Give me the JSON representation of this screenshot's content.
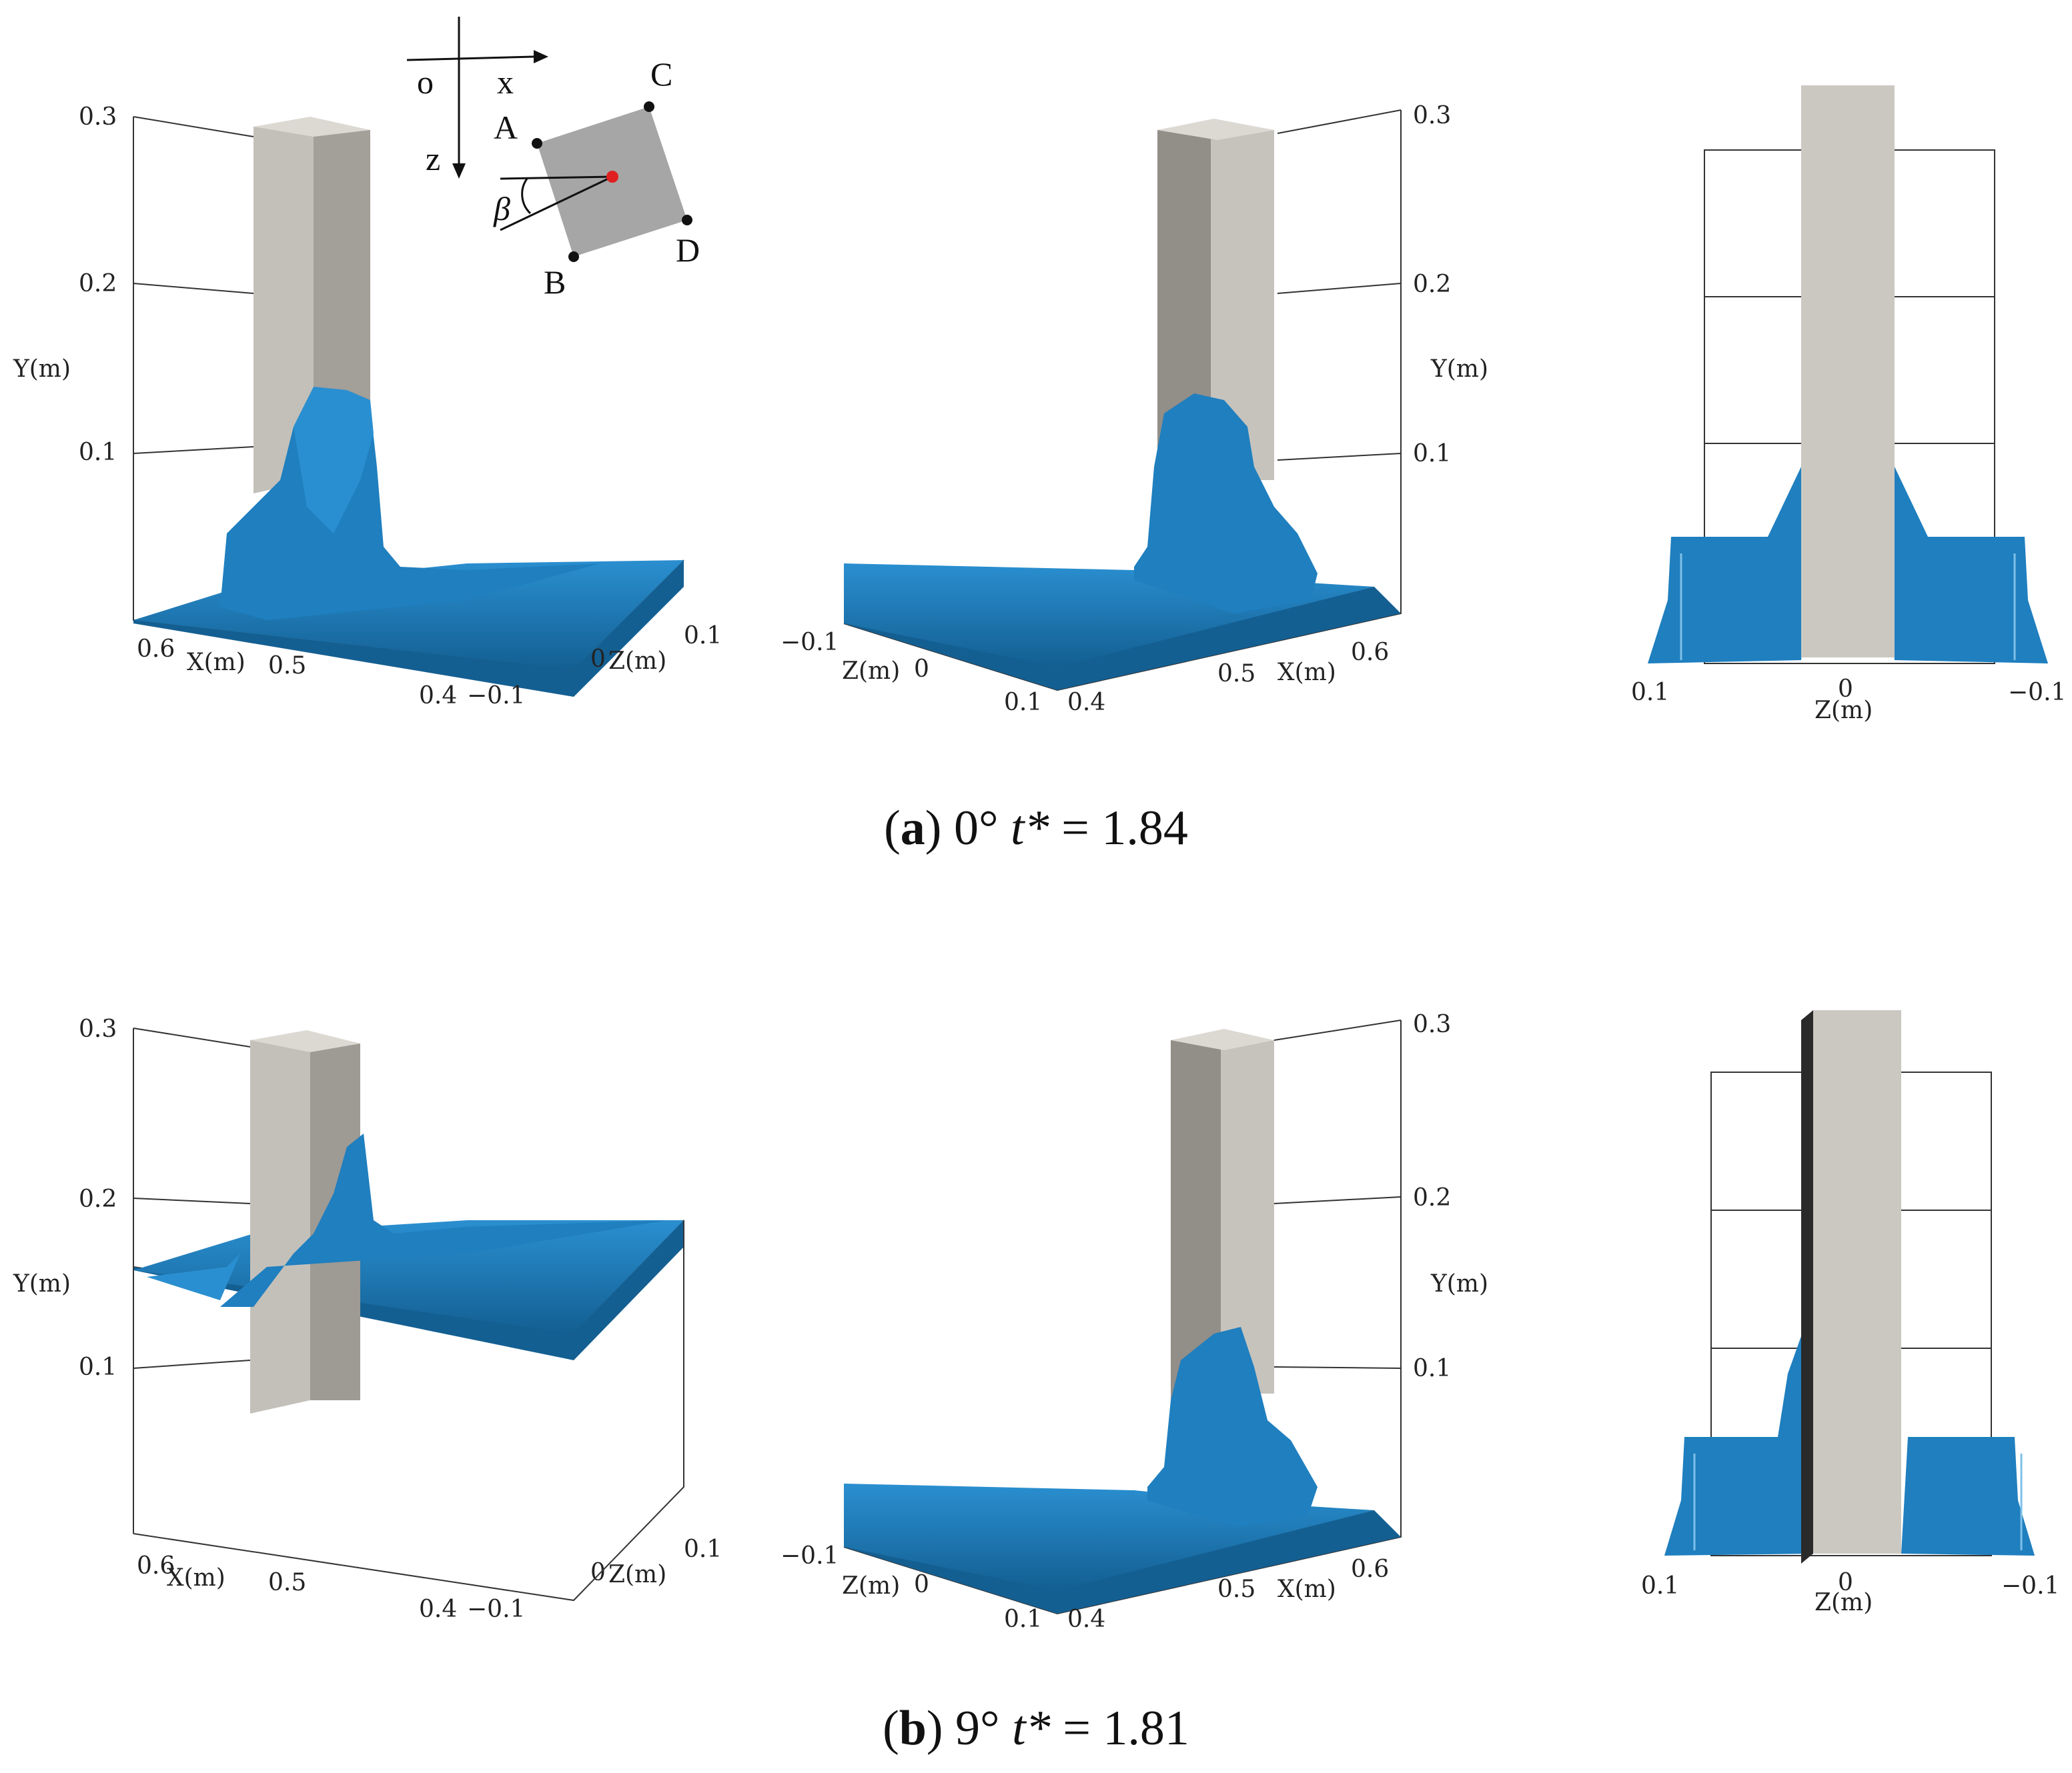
{
  "panels": [
    {
      "id": "a",
      "label": "a",
      "caption_angle": "0°",
      "caption_t": "t*",
      "caption_eq": "= 1.84",
      "view1": {
        "y_ticks": [
          "0.3",
          "0.2",
          "0.1"
        ],
        "x_ticks": [
          "0.6",
          "0.5",
          "0.4"
        ],
        "z_ticks": [
          "0.1",
          "0",
          "−0.1"
        ],
        "x_label": "X(m)",
        "y_label": "Y(m)",
        "z_label": "Z(m)"
      },
      "view2": {
        "y_ticks": [
          "0.3",
          "0.2",
          "0.1"
        ],
        "x_ticks": [
          "0.6",
          "0.5",
          "0.4"
        ],
        "z_ticks": [
          "−0.1",
          "0",
          "0.1"
        ],
        "x_label": "X(m)",
        "y_label": "Y(m)",
        "z_label": "Z(m)"
      },
      "view3": {
        "z_ticks": [
          "0.1",
          "0",
          "−0.1"
        ],
        "z_label": "Z(m)"
      }
    },
    {
      "id": "b",
      "label": "b",
      "caption_angle": "9°",
      "caption_t": "t*",
      "caption_eq": "= 1.81",
      "view1": {
        "y_ticks": [
          "0.3",
          "0.2",
          "0.1"
        ],
        "x_ticks": [
          "0.6",
          "0.5",
          "0.4"
        ],
        "z_ticks": [
          "0.1",
          "0",
          "−0.1"
        ],
        "x_label": "X(m)",
        "y_label": "Y(m)",
        "z_label": "Z(m)"
      },
      "view2": {
        "y_ticks": [
          "0.3",
          "0.2",
          "0.1"
        ],
        "x_ticks": [
          "0.6",
          "0.5",
          "0.4"
        ],
        "z_ticks": [
          "−0.1",
          "0",
          "0.1"
        ],
        "x_label": "X(m)",
        "y_label": "Y(m)",
        "z_label": "Z(m)"
      },
      "view3": {
        "z_ticks": [
          "0.1",
          "0",
          "−0.1"
        ],
        "z_label": "Z(m)"
      }
    }
  ],
  "schematic": {
    "origin": "o",
    "x_axis": "x",
    "z_axis": "z",
    "angle": "β",
    "corners": [
      "A",
      "B",
      "C",
      "D"
    ]
  },
  "colors": {
    "water": "#1f7fbf",
    "water_dark": "#13608f",
    "column_light": "#c9c6c0",
    "column_dark": "#9a9791",
    "column_face": "#d8d5cf",
    "square": "#a6a6a6",
    "center_dot": "#e02020"
  }
}
